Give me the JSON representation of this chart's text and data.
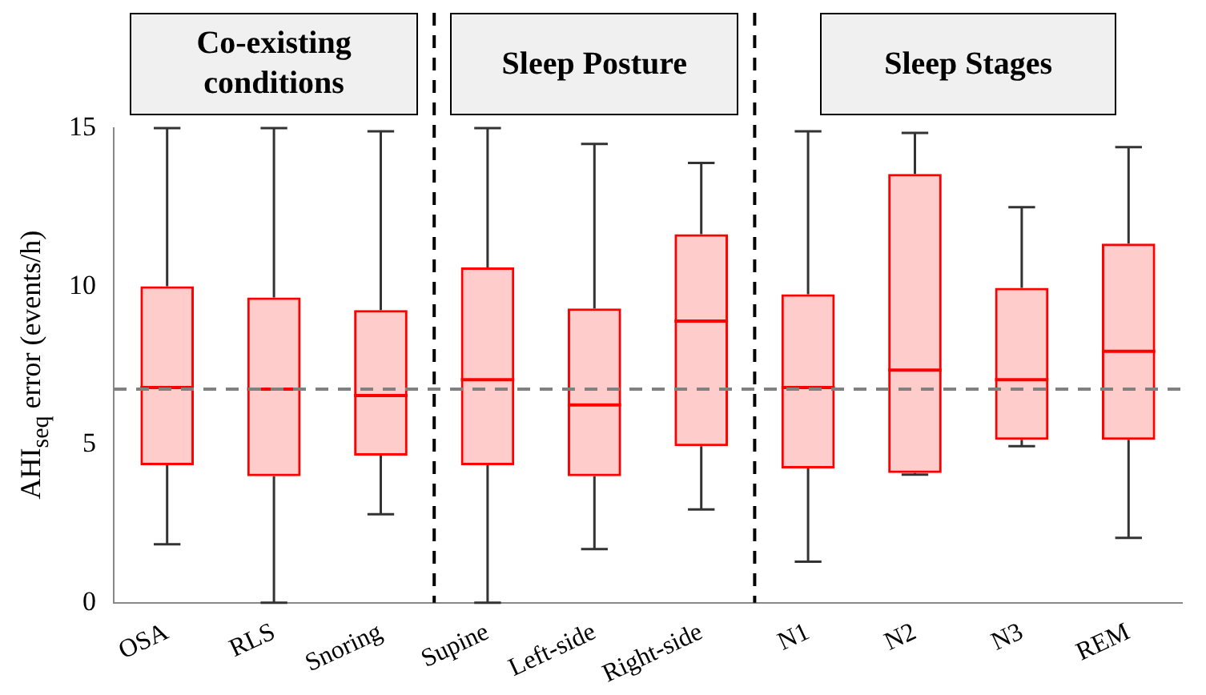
{
  "chart_data": {
    "type": "box",
    "ylabel": "AHI$_{seq}$ error (events/h)",
    "categories": [
      "OSA",
      "RLS",
      "Snoring",
      "Supine",
      "Left-side",
      "Right-side",
      "N1",
      "N2",
      "N3",
      "REM"
    ],
    "color": "#ff0000",
    "boxes": [
      {
        "low": 1.85,
        "q1": 4.35,
        "median": 6.8,
        "q3": 10,
        "high": 15
      },
      {
        "low": 0,
        "q1": 4.0,
        "median": 6.75,
        "q3": 9.65,
        "high": 15
      },
      {
        "low": 2.8,
        "q1": 4.65,
        "median": 6.55,
        "q3": 9.25,
        "high": 14.9
      },
      {
        "low": 0,
        "q1": 4.35,
        "median": 7.05,
        "q3": 10.6,
        "high": 15
      },
      {
        "low": 1.7,
        "q1": 4.0,
        "median": 6.25,
        "q3": 9.3,
        "high": 14.5
      },
      {
        "low": 2.95,
        "q1": 4.95,
        "median": 8.9,
        "q3": 11.65,
        "high": 13.9
      },
      {
        "low": 1.3,
        "q1": 4.25,
        "median": 6.8,
        "q3": 9.75,
        "high": 14.9
      },
      {
        "low": 4.05,
        "q1": 4.1,
        "median": 7.35,
        "q3": 13.55,
        "high": 14.85
      },
      {
        "low": 4.95,
        "q1": 5.15,
        "median": 7.05,
        "q3": 9.95,
        "high": 12.5
      },
      {
        "low": 2.05,
        "q1": 5.15,
        "median": 7.95,
        "q3": 11.35,
        "high": 14.4
      }
    ],
    "ylim": [
      0,
      15
    ],
    "yticks": [
      0,
      5,
      10,
      15
    ],
    "grid": false,
    "ref_lines": [
      {
        "axis": "y",
        "value": 6.75,
        "color": "#808080",
        "line_style": "dashed"
      }
    ],
    "annotations": [
      "Co-existing conditions",
      "Sleep Posture",
      "Sleep Stages"
    ]
  }
}
